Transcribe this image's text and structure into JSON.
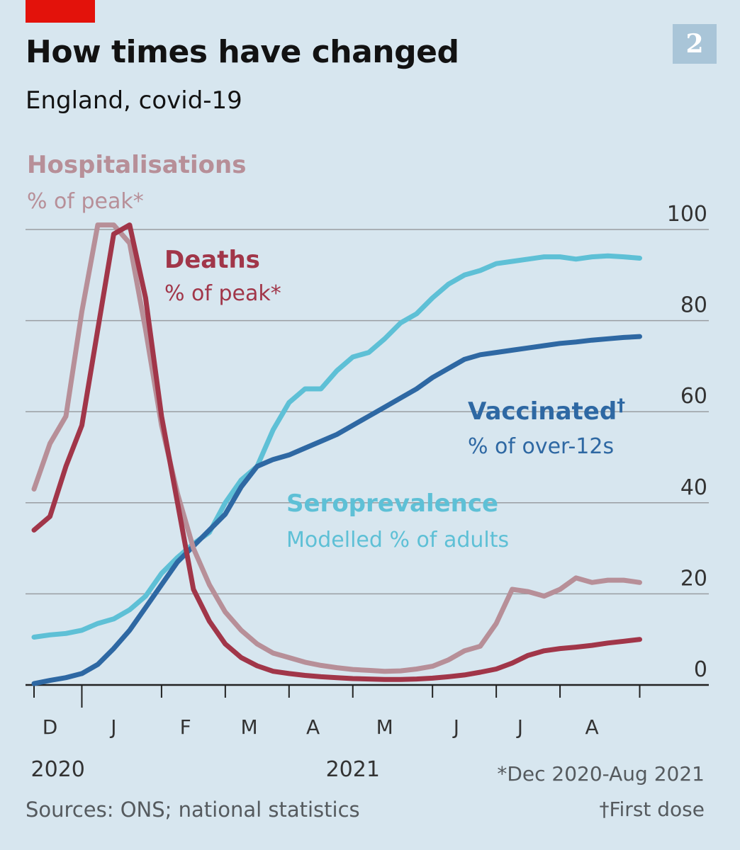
{
  "header": {
    "title": "How times have changed",
    "subtitle": "England, covid-19",
    "badge": "2"
  },
  "footer": {
    "sources": "Sources: ONS; national statistics",
    "footnote_1": "*Dec 2020-Aug 2021",
    "footnote_2": "†First dose"
  },
  "colors": {
    "background": "#d7e6ef",
    "hospitalisations": "#b78f98",
    "deaths": "#a13649",
    "vaccinated": "#2e68a3",
    "seroprevalence": "#5ec0d6",
    "gridline": "#9a9ea2",
    "brand_red": "#e3120b"
  },
  "chart_data": {
    "type": "line",
    "x_unit": "weeks from start of December 2020",
    "xlim": [
      0,
      39
    ],
    "ylim": [
      0,
      100
    ],
    "y_ticks": [
      0,
      20,
      40,
      60,
      80,
      100
    ],
    "y_axis_side": "right",
    "grid": true,
    "x_month_labels": [
      {
        "label": "D",
        "x": 1
      },
      {
        "label": "J",
        "x": 5
      },
      {
        "label": "F",
        "x": 9.5
      },
      {
        "label": "M",
        "x": 13.5
      },
      {
        "label": "A",
        "x": 17.5
      },
      {
        "label": "M",
        "x": 22
      },
      {
        "label": "J",
        "x": 26.5
      },
      {
        "label": "J",
        "x": 30.5
      },
      {
        "label": "A",
        "x": 35
      }
    ],
    "x_ticks": [
      0,
      3,
      8,
      12,
      16,
      20,
      25,
      29,
      33,
      38
    ],
    "year_labels": [
      {
        "label": "2020",
        "x": 1.5
      },
      {
        "label": "2021",
        "x": 20
      }
    ],
    "series": [
      {
        "name": "Hospitalisations",
        "note": "% of peak*",
        "color_key": "hospitalisations",
        "x": [
          0,
          1,
          2,
          3,
          4,
          5,
          6,
          7,
          8,
          9,
          10,
          11,
          12,
          13,
          14,
          15,
          16,
          17,
          18,
          19,
          20,
          21,
          22,
          23,
          24,
          25,
          26,
          27,
          28,
          29,
          30,
          31,
          32,
          33,
          34,
          35,
          36,
          37,
          38
        ],
        "values": [
          43,
          53,
          59,
          82,
          101,
          101,
          97,
          78,
          57,
          42,
          30,
          22,
          16,
          12,
          9,
          7,
          6,
          5,
          4.3,
          3.8,
          3.4,
          3.2,
          3.0,
          3.1,
          3.5,
          4.1,
          5.5,
          7.5,
          8.5,
          13.5,
          21,
          20.5,
          19.5,
          21,
          23.5,
          22.5,
          23,
          23,
          22.5
        ]
      },
      {
        "name": "Deaths",
        "note": "% of peak*",
        "color_key": "deaths",
        "x": [
          0,
          1,
          2,
          3,
          4,
          5,
          6,
          7,
          8,
          9,
          10,
          11,
          12,
          13,
          14,
          15,
          16,
          17,
          18,
          19,
          20,
          21,
          22,
          23,
          24,
          25,
          26,
          27,
          28,
          29,
          30,
          31,
          32,
          33,
          34,
          35,
          36,
          37,
          38
        ],
        "values": [
          34,
          37,
          48,
          57,
          78,
          99,
          101,
          85,
          59,
          40,
          21,
          14,
          9,
          6,
          4.2,
          3.0,
          2.5,
          2.1,
          1.8,
          1.6,
          1.4,
          1.3,
          1.2,
          1.2,
          1.3,
          1.5,
          1.8,
          2.2,
          2.8,
          3.5,
          4.8,
          6.5,
          7.5,
          8.0,
          8.3,
          8.7,
          9.2,
          9.6,
          10
        ]
      },
      {
        "name": "Vaccinated",
        "note": "% of over-12s",
        "color_key": "vaccinated",
        "x": [
          0,
          1,
          2,
          3,
          4,
          5,
          6,
          7,
          8,
          9,
          10,
          11,
          12,
          13,
          14,
          15,
          16,
          17,
          18,
          19,
          20,
          21,
          22,
          23,
          24,
          25,
          26,
          27,
          28,
          29,
          30,
          31,
          32,
          33,
          34,
          35,
          36,
          37,
          38
        ],
        "values": [
          0.3,
          1.0,
          1.6,
          2.5,
          4.5,
          8,
          12,
          17,
          22,
          27,
          30.5,
          34,
          37.5,
          43.5,
          48,
          49.5,
          50.5,
          52,
          53.5,
          55,
          57,
          59,
          61,
          63,
          65,
          67.5,
          69.5,
          71.5,
          72.5,
          73,
          73.5,
          74,
          74.5,
          75,
          75.3,
          75.7,
          76,
          76.3,
          76.5
        ]
      },
      {
        "name": "Seroprevalence",
        "note": "Modelled % of adults",
        "color_key": "seroprevalence",
        "x": [
          0,
          1,
          2,
          3,
          4,
          5,
          6,
          7,
          8,
          9,
          10,
          11,
          12,
          13,
          14,
          15,
          16,
          17,
          18,
          19,
          20,
          21,
          22,
          23,
          24,
          25,
          26,
          27,
          28,
          29,
          30,
          31,
          32,
          33,
          34,
          35,
          36,
          37,
          38
        ],
        "values": [
          10.5,
          11,
          11.3,
          12,
          13.5,
          14.5,
          16.5,
          19.5,
          24.5,
          28,
          31,
          33.5,
          40,
          45,
          48,
          56,
          62,
          65,
          65,
          69,
          72,
          73,
          76,
          79.5,
          81.5,
          85,
          88,
          90,
          91,
          92.5,
          93,
          93.5,
          94,
          94,
          93.5,
          94,
          94.2,
          94,
          93.7
        ]
      }
    ]
  },
  "labels": {
    "hospitalisations": {
      "title": "Hospitalisations",
      "note": "% of peak*"
    },
    "deaths": {
      "title": "Deaths",
      "note": "% of peak*"
    },
    "vaccinated": {
      "title": "Vaccinated",
      "dagger": "†",
      "note": "% of over-12s"
    },
    "seroprevalence": {
      "title": "Seroprevalence",
      "note": "Modelled % of adults"
    }
  }
}
